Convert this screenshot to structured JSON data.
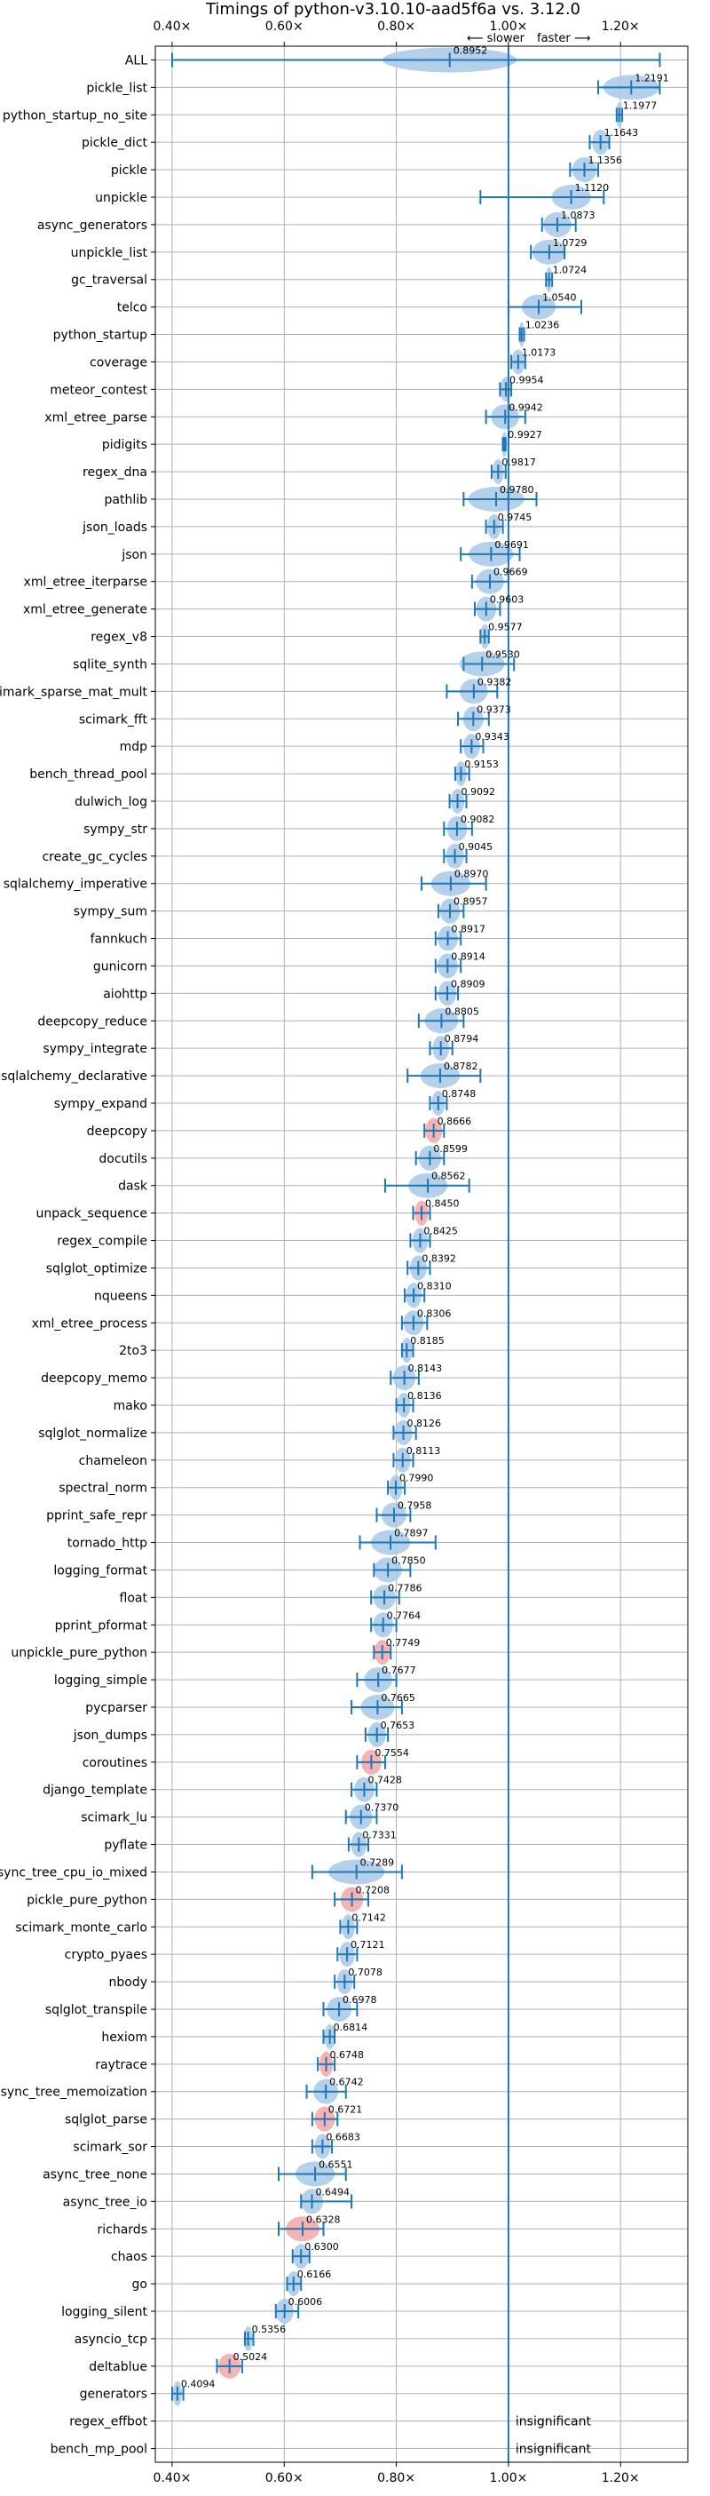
{
  "chart_data": {
    "type": "violin",
    "title": "Timings of python-v3.10.10-aad5f6a vs. 3.12.0",
    "direction_labels": {
      "slower": "⟵ slower",
      "faster": "faster ⟶"
    },
    "xlim": [
      0.37,
      1.32
    ],
    "x_ticks": [
      {
        "value": 0.4,
        "label": "0.40×"
      },
      {
        "value": 0.6,
        "label": "0.60×"
      },
      {
        "value": 0.8,
        "label": "0.80×"
      },
      {
        "value": 1.0,
        "label": "1.00×"
      },
      {
        "value": 1.2,
        "label": "1.20×"
      }
    ],
    "reference_line": 1.0,
    "grid": true,
    "colors": {
      "normal": "#a7c8e6",
      "highlight": "#f4a6a6",
      "whisker": "#1f77b4",
      "reference": "#1f77b4"
    },
    "benchmarks": [
      {
        "name": "ALL",
        "mean": 0.8952,
        "min": 0.4,
        "max": 1.27,
        "spread": 0.12,
        "label": "0.8952",
        "color": "normal"
      },
      {
        "name": "pickle_list",
        "mean": 1.2191,
        "min": 1.16,
        "max": 1.27,
        "spread": 0.05,
        "label": "1.2191",
        "color": "normal"
      },
      {
        "name": "python_startup_no_site",
        "mean": 1.1977,
        "min": 1.193,
        "max": 1.203,
        "spread": 0.006,
        "label": "1.1977",
        "color": "normal"
      },
      {
        "name": "pickle_dict",
        "mean": 1.1643,
        "min": 1.145,
        "max": 1.18,
        "spread": 0.015,
        "label": "1.1643",
        "color": "normal"
      },
      {
        "name": "pickle",
        "mean": 1.1356,
        "min": 1.11,
        "max": 1.16,
        "spread": 0.022,
        "label": "1.1356",
        "color": "normal"
      },
      {
        "name": "unpickle",
        "mean": 1.112,
        "min": 0.95,
        "max": 1.17,
        "spread": 0.035,
        "label": "1.1120",
        "color": "normal"
      },
      {
        "name": "async_generators",
        "mean": 1.0873,
        "min": 1.06,
        "max": 1.12,
        "spread": 0.025,
        "label": "1.0873",
        "color": "normal"
      },
      {
        "name": "unpickle_list",
        "mean": 1.0729,
        "min": 1.04,
        "max": 1.1,
        "spread": 0.03,
        "label": "1.0729",
        "color": "normal"
      },
      {
        "name": "gc_traversal",
        "mean": 1.0724,
        "min": 1.067,
        "max": 1.078,
        "spread": 0.006,
        "label": "1.0724",
        "color": "normal"
      },
      {
        "name": "telco",
        "mean": 1.054,
        "min": 1.0,
        "max": 1.13,
        "spread": 0.03,
        "label": "1.0540",
        "color": "normal"
      },
      {
        "name": "python_startup",
        "mean": 1.0236,
        "min": 1.02,
        "max": 1.028,
        "spread": 0.005,
        "label": "1.0236",
        "color": "normal"
      },
      {
        "name": "coverage",
        "mean": 1.0173,
        "min": 1.005,
        "max": 1.03,
        "spread": 0.012,
        "label": "1.0173",
        "color": "normal"
      },
      {
        "name": "meteor_contest",
        "mean": 0.9954,
        "min": 0.985,
        "max": 1.005,
        "spread": 0.01,
        "label": "0.9954",
        "color": "normal"
      },
      {
        "name": "xml_etree_parse",
        "mean": 0.9942,
        "min": 0.96,
        "max": 1.03,
        "spread": 0.025,
        "label": "0.9942",
        "color": "normal"
      },
      {
        "name": "pidigits",
        "mean": 0.9927,
        "min": 0.99,
        "max": 0.995,
        "spread": 0.004,
        "label": "0.9927",
        "color": "normal"
      },
      {
        "name": "regex_dna",
        "mean": 0.9817,
        "min": 0.97,
        "max": 0.995,
        "spread": 0.01,
        "label": "0.9817",
        "color": "normal"
      },
      {
        "name": "pathlib",
        "mean": 0.978,
        "min": 0.92,
        "max": 1.05,
        "spread": 0.05,
        "label": "0.9780",
        "color": "normal"
      },
      {
        "name": "json_loads",
        "mean": 0.9745,
        "min": 0.96,
        "max": 0.99,
        "spread": 0.012,
        "label": "0.9745",
        "color": "normal"
      },
      {
        "name": "json",
        "mean": 0.9691,
        "min": 0.915,
        "max": 1.02,
        "spread": 0.04,
        "label": "0.9691",
        "color": "normal"
      },
      {
        "name": "xml_etree_iterparse",
        "mean": 0.9669,
        "min": 0.935,
        "max": 1.0,
        "spread": 0.025,
        "label": "0.9669",
        "color": "normal"
      },
      {
        "name": "xml_etree_generate",
        "mean": 0.9603,
        "min": 0.94,
        "max": 0.985,
        "spread": 0.018,
        "label": "0.9603",
        "color": "normal"
      },
      {
        "name": "regex_v8",
        "mean": 0.9577,
        "min": 0.95,
        "max": 0.965,
        "spread": 0.008,
        "label": "0.9577",
        "color": "normal"
      },
      {
        "name": "sqlite_synth",
        "mean": 0.953,
        "min": 0.92,
        "max": 1.01,
        "spread": 0.04,
        "label": "0.9530",
        "color": "normal"
      },
      {
        "name": "scimark_sparse_mat_mult",
        "mean": 0.9382,
        "min": 0.89,
        "max": 0.98,
        "spread": 0.025,
        "label": "0.9382",
        "color": "normal"
      },
      {
        "name": "scimark_fft",
        "mean": 0.9373,
        "min": 0.91,
        "max": 0.965,
        "spread": 0.018,
        "label": "0.9373",
        "color": "normal"
      },
      {
        "name": "mdp",
        "mean": 0.9343,
        "min": 0.915,
        "max": 0.955,
        "spread": 0.015,
        "label": "0.9343",
        "color": "normal"
      },
      {
        "name": "bench_thread_pool",
        "mean": 0.9153,
        "min": 0.905,
        "max": 0.93,
        "spread": 0.01,
        "label": "0.9153",
        "color": "normal"
      },
      {
        "name": "dulwich_log",
        "mean": 0.9092,
        "min": 0.895,
        "max": 0.925,
        "spread": 0.012,
        "label": "0.9092",
        "color": "normal"
      },
      {
        "name": "sympy_str",
        "mean": 0.9082,
        "min": 0.885,
        "max": 0.935,
        "spread": 0.018,
        "label": "0.9082",
        "color": "normal"
      },
      {
        "name": "create_gc_cycles",
        "mean": 0.9045,
        "min": 0.885,
        "max": 0.925,
        "spread": 0.016,
        "label": "0.9045",
        "color": "normal"
      },
      {
        "name": "sqlalchemy_imperative",
        "mean": 0.897,
        "min": 0.845,
        "max": 0.96,
        "spread": 0.035,
        "label": "0.8970",
        "color": "normal"
      },
      {
        "name": "sympy_sum",
        "mean": 0.8957,
        "min": 0.875,
        "max": 0.92,
        "spread": 0.018,
        "label": "0.8957",
        "color": "normal"
      },
      {
        "name": "fannkuch",
        "mean": 0.8917,
        "min": 0.87,
        "max": 0.915,
        "spread": 0.018,
        "label": "0.8917",
        "color": "normal"
      },
      {
        "name": "gunicorn",
        "mean": 0.8914,
        "min": 0.87,
        "max": 0.915,
        "spread": 0.018,
        "label": "0.8914",
        "color": "normal"
      },
      {
        "name": "aiohttp",
        "mean": 0.8909,
        "min": 0.87,
        "max": 0.91,
        "spread": 0.016,
        "label": "0.8909",
        "color": "normal"
      },
      {
        "name": "deepcopy_reduce",
        "mean": 0.8805,
        "min": 0.84,
        "max": 0.92,
        "spread": 0.03,
        "label": "0.8805",
        "color": "normal"
      },
      {
        "name": "sympy_integrate",
        "mean": 0.8794,
        "min": 0.86,
        "max": 0.9,
        "spread": 0.015,
        "label": "0.8794",
        "color": "normal"
      },
      {
        "name": "sqlalchemy_declarative",
        "mean": 0.8782,
        "min": 0.82,
        "max": 0.95,
        "spread": 0.035,
        "label": "0.8782",
        "color": "normal"
      },
      {
        "name": "sympy_expand",
        "mean": 0.8748,
        "min": 0.86,
        "max": 0.89,
        "spread": 0.012,
        "label": "0.8748",
        "color": "normal"
      },
      {
        "name": "deepcopy",
        "mean": 0.8666,
        "min": 0.85,
        "max": 0.885,
        "spread": 0.015,
        "label": "0.8666",
        "color": "highlight"
      },
      {
        "name": "docutils",
        "mean": 0.8599,
        "min": 0.835,
        "max": 0.885,
        "spread": 0.02,
        "label": "0.8599",
        "color": "normal"
      },
      {
        "name": "dask",
        "mean": 0.8562,
        "min": 0.78,
        "max": 0.93,
        "spread": 0.035,
        "label": "0.8562",
        "color": "normal"
      },
      {
        "name": "unpack_sequence",
        "mean": 0.845,
        "min": 0.83,
        "max": 0.86,
        "spread": 0.012,
        "label": "0.8450",
        "color": "highlight"
      },
      {
        "name": "regex_compile",
        "mean": 0.8425,
        "min": 0.825,
        "max": 0.86,
        "spread": 0.014,
        "label": "0.8425",
        "color": "normal"
      },
      {
        "name": "sqlglot_optimize",
        "mean": 0.8392,
        "min": 0.82,
        "max": 0.86,
        "spread": 0.015,
        "label": "0.8392",
        "color": "normal"
      },
      {
        "name": "nqueens",
        "mean": 0.831,
        "min": 0.815,
        "max": 0.85,
        "spread": 0.014,
        "label": "0.8310",
        "color": "normal"
      },
      {
        "name": "xml_etree_process",
        "mean": 0.8306,
        "min": 0.81,
        "max": 0.855,
        "spread": 0.018,
        "label": "0.8306",
        "color": "normal"
      },
      {
        "name": "2to3",
        "mean": 0.8185,
        "min": 0.81,
        "max": 0.83,
        "spread": 0.01,
        "label": "0.8185",
        "color": "normal"
      },
      {
        "name": "deepcopy_memo",
        "mean": 0.8143,
        "min": 0.79,
        "max": 0.84,
        "spread": 0.02,
        "label": "0.8143",
        "color": "normal"
      },
      {
        "name": "mako",
        "mean": 0.8136,
        "min": 0.8,
        "max": 0.83,
        "spread": 0.012,
        "label": "0.8136",
        "color": "normal"
      },
      {
        "name": "sqlglot_normalize",
        "mean": 0.8126,
        "min": 0.795,
        "max": 0.835,
        "spread": 0.016,
        "label": "0.8126",
        "color": "normal"
      },
      {
        "name": "chameleon",
        "mean": 0.8113,
        "min": 0.795,
        "max": 0.83,
        "spread": 0.014,
        "label": "0.8113",
        "color": "normal"
      },
      {
        "name": "spectral_norm",
        "mean": 0.799,
        "min": 0.785,
        "max": 0.815,
        "spread": 0.012,
        "label": "0.7990",
        "color": "normal"
      },
      {
        "name": "pprint_safe_repr",
        "mean": 0.7958,
        "min": 0.765,
        "max": 0.825,
        "spread": 0.022,
        "label": "0.7958",
        "color": "normal"
      },
      {
        "name": "tornado_http",
        "mean": 0.7897,
        "min": 0.735,
        "max": 0.87,
        "spread": 0.035,
        "label": "0.7897",
        "color": "normal"
      },
      {
        "name": "logging_format",
        "mean": 0.785,
        "min": 0.76,
        "max": 0.825,
        "spread": 0.025,
        "label": "0.7850",
        "color": "normal"
      },
      {
        "name": "float",
        "mean": 0.7786,
        "min": 0.755,
        "max": 0.805,
        "spread": 0.02,
        "label": "0.7786",
        "color": "normal"
      },
      {
        "name": "pprint_pformat",
        "mean": 0.7764,
        "min": 0.755,
        "max": 0.8,
        "spread": 0.018,
        "label": "0.7764",
        "color": "normal"
      },
      {
        "name": "unpickle_pure_python",
        "mean": 0.7749,
        "min": 0.76,
        "max": 0.79,
        "spread": 0.014,
        "label": "0.7749",
        "color": "highlight"
      },
      {
        "name": "logging_simple",
        "mean": 0.7677,
        "min": 0.73,
        "max": 0.8,
        "spread": 0.025,
        "label": "0.7677",
        "color": "normal"
      },
      {
        "name": "pycparser",
        "mean": 0.7665,
        "min": 0.72,
        "max": 0.81,
        "spread": 0.03,
        "label": "0.7665",
        "color": "normal"
      },
      {
        "name": "json_dumps",
        "mean": 0.7653,
        "min": 0.745,
        "max": 0.785,
        "spread": 0.016,
        "label": "0.7653",
        "color": "normal"
      },
      {
        "name": "coroutines",
        "mean": 0.7554,
        "min": 0.73,
        "max": 0.78,
        "spread": 0.018,
        "label": "0.7554",
        "color": "highlight"
      },
      {
        "name": "django_template",
        "mean": 0.7428,
        "min": 0.72,
        "max": 0.765,
        "spread": 0.018,
        "label": "0.7428",
        "color": "normal"
      },
      {
        "name": "scimark_lu",
        "mean": 0.737,
        "min": 0.71,
        "max": 0.765,
        "spread": 0.02,
        "label": "0.7370",
        "color": "normal"
      },
      {
        "name": "pyflate",
        "mean": 0.7331,
        "min": 0.715,
        "max": 0.75,
        "spread": 0.014,
        "label": "0.7331",
        "color": "normal"
      },
      {
        "name": "async_tree_cpu_io_mixed",
        "mean": 0.7289,
        "min": 0.65,
        "max": 0.81,
        "spread": 0.05,
        "label": "0.7289",
        "color": "normal"
      },
      {
        "name": "pickle_pure_python",
        "mean": 0.7208,
        "min": 0.69,
        "max": 0.75,
        "spread": 0.02,
        "label": "0.7208",
        "color": "highlight"
      },
      {
        "name": "scimark_monte_carlo",
        "mean": 0.7142,
        "min": 0.7,
        "max": 0.73,
        "spread": 0.012,
        "label": "0.7142",
        "color": "normal"
      },
      {
        "name": "crypto_pyaes",
        "mean": 0.7121,
        "min": 0.695,
        "max": 0.73,
        "spread": 0.014,
        "label": "0.7121",
        "color": "normal"
      },
      {
        "name": "nbody",
        "mean": 0.7078,
        "min": 0.69,
        "max": 0.725,
        "spread": 0.014,
        "label": "0.7078",
        "color": "normal"
      },
      {
        "name": "sqlglot_transpile",
        "mean": 0.6978,
        "min": 0.67,
        "max": 0.73,
        "spread": 0.022,
        "label": "0.6978",
        "color": "normal"
      },
      {
        "name": "hexiom",
        "mean": 0.6814,
        "min": 0.67,
        "max": 0.69,
        "spread": 0.01,
        "label": "0.6814",
        "color": "normal"
      },
      {
        "name": "raytrace",
        "mean": 0.6748,
        "min": 0.66,
        "max": 0.69,
        "spread": 0.012,
        "label": "0.6748",
        "color": "highlight"
      },
      {
        "name": "async_tree_memoization",
        "mean": 0.6742,
        "min": 0.64,
        "max": 0.71,
        "spread": 0.022,
        "label": "0.6742",
        "color": "normal"
      },
      {
        "name": "sqlglot_parse",
        "mean": 0.6721,
        "min": 0.65,
        "max": 0.695,
        "spread": 0.018,
        "label": "0.6721",
        "color": "highlight"
      },
      {
        "name": "scimark_sor",
        "mean": 0.6683,
        "min": 0.65,
        "max": 0.685,
        "spread": 0.014,
        "label": "0.6683",
        "color": "normal"
      },
      {
        "name": "async_tree_none",
        "mean": 0.6551,
        "min": 0.59,
        "max": 0.71,
        "spread": 0.035,
        "label": "0.6551",
        "color": "normal"
      },
      {
        "name": "async_tree_io",
        "mean": 0.6494,
        "min": 0.63,
        "max": 0.72,
        "spread": 0.02,
        "label": "0.6494",
        "color": "normal"
      },
      {
        "name": "richards",
        "mean": 0.6328,
        "min": 0.59,
        "max": 0.67,
        "spread": 0.03,
        "label": "0.6328",
        "color": "highlight"
      },
      {
        "name": "chaos",
        "mean": 0.63,
        "min": 0.615,
        "max": 0.645,
        "spread": 0.014,
        "label": "0.6300",
        "color": "normal"
      },
      {
        "name": "go",
        "mean": 0.6166,
        "min": 0.605,
        "max": 0.63,
        "spread": 0.012,
        "label": "0.6166",
        "color": "normal"
      },
      {
        "name": "logging_silent",
        "mean": 0.6006,
        "min": 0.585,
        "max": 0.625,
        "spread": 0.016,
        "label": "0.6006",
        "color": "normal"
      },
      {
        "name": "asyncio_tcp",
        "mean": 0.5356,
        "min": 0.53,
        "max": 0.545,
        "spread": 0.008,
        "label": "0.5356",
        "color": "normal"
      },
      {
        "name": "deltablue",
        "mean": 0.5024,
        "min": 0.48,
        "max": 0.525,
        "spread": 0.02,
        "label": "0.5024",
        "color": "highlight"
      },
      {
        "name": "generators",
        "mean": 0.4094,
        "min": 0.4,
        "max": 0.42,
        "spread": 0.008,
        "label": "0.4094",
        "color": "normal"
      },
      {
        "name": "regex_effbot",
        "mean": null,
        "label": "insignificant",
        "color": "normal"
      },
      {
        "name": "bench_mp_pool",
        "mean": null,
        "label": "insignificant",
        "color": "normal"
      }
    ]
  }
}
